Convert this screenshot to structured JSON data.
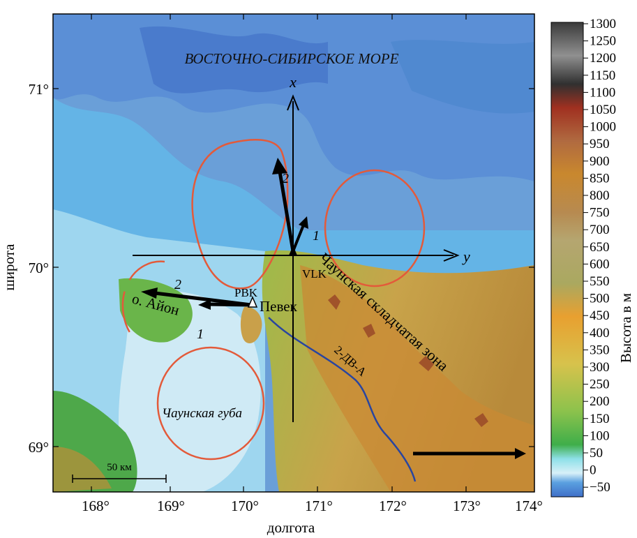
{
  "map": {
    "sea_label": "ВОСТОЧНО-СИБИРСКОЕ МОРЕ",
    "lat_ticks": [
      "71°",
      "70°",
      "69°"
    ],
    "lon_ticks": [
      "168°",
      "169°",
      "170°",
      "171°",
      "172°",
      "173°",
      "174°"
    ],
    "xlabel": "долгота",
    "ylabel": "широта",
    "axis_x_label": "x",
    "axis_y_label": "y",
    "station_vlk": "VLK",
    "station_pbk": "PBK",
    "town": "Певек",
    "island": "о. Айон",
    "bay": "Чаунская губа",
    "fold_zone": "Чаунская складчатая зона",
    "profile": "2-ДВ-А",
    "arrow_label_1": "1",
    "arrow_label_2": "2",
    "scale_bar": "50 км"
  },
  "colorbar": {
    "title": "Высота в м",
    "ticks": [
      "1300",
      "1250",
      "1200",
      "1150",
      "1100",
      "1050",
      "1000",
      "950",
      "900",
      "850",
      "800",
      "750",
      "700",
      "650",
      "600",
      "550",
      "500",
      "450",
      "400",
      "350",
      "300",
      "250",
      "200",
      "150",
      "100",
      "50",
      "0",
      "−50"
    ]
  },
  "colors": {
    "deep_sea": "#3f6fc8",
    "mid_sea": "#5aa0e0",
    "shelf": "#72c8ec",
    "shallow": "#bfe6f2",
    "lowland": "#5fb84c",
    "hills": "#b5b64a",
    "mountains": "#c9882e",
    "ellipse": "#e35a3a",
    "profile_line": "#2945a0"
  }
}
